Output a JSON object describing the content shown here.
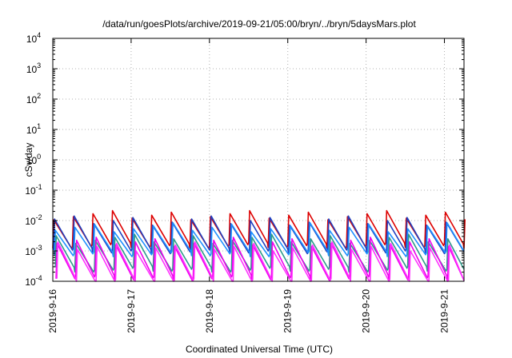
{
  "chart_data": {
    "type": "line",
    "title": "/data/run/goesPlots/archive/2019-09-21/05:00/bryn/../bryn/5daysMars.plot",
    "xlabel": "Coordinated Universal Time (UTC)",
    "ylabel": "cSv/day",
    "y_scale": "log",
    "ylim": [
      0.0001,
      10000
    ],
    "y_ticks": [
      {
        "value": 0.0001,
        "base": "10",
        "exp": "-4"
      },
      {
        "value": 0.001,
        "base": "10",
        "exp": "-3"
      },
      {
        "value": 0.01,
        "base": "10",
        "exp": "-2"
      },
      {
        "value": 0.1,
        "base": "10",
        "exp": "-1"
      },
      {
        "value": 1,
        "base": "10",
        "exp": "0"
      },
      {
        "value": 10,
        "base": "10",
        "exp": "1"
      },
      {
        "value": 100,
        "base": "10",
        "exp": "2"
      },
      {
        "value": 1000,
        "base": "10",
        "exp": "3"
      },
      {
        "value": 10000,
        "base": "10",
        "exp": "4"
      }
    ],
    "xlim": [
      "2019-09-16",
      "2019-09-21 06:00"
    ],
    "x_ticks": [
      "2019-9-16",
      "2019-9-17",
      "2019-9-18",
      "2019-9-19",
      "2019-9-20",
      "2019-9-21"
    ],
    "grid": true,
    "legend": "none",
    "sawtooth_period_hours": 6,
    "series": [
      {
        "color": "#dd0000",
        "peak": 0.015,
        "trough": 0.0015
      },
      {
        "color": "#1f3fbf",
        "peak": 0.01,
        "trough": 0.001
      },
      {
        "color": "#1e90ff",
        "peak": 0.006,
        "trough": 0.0008
      },
      {
        "color": "#2e9a8a",
        "peak": 0.0025,
        "trough": 0.00025
      },
      {
        "color": "#ee00ee",
        "peak": 0.002,
        "trough": 0.00013
      },
      {
        "color": "#ff33ff",
        "peak": 0.0014,
        "trough": 0.0001
      }
    ]
  }
}
